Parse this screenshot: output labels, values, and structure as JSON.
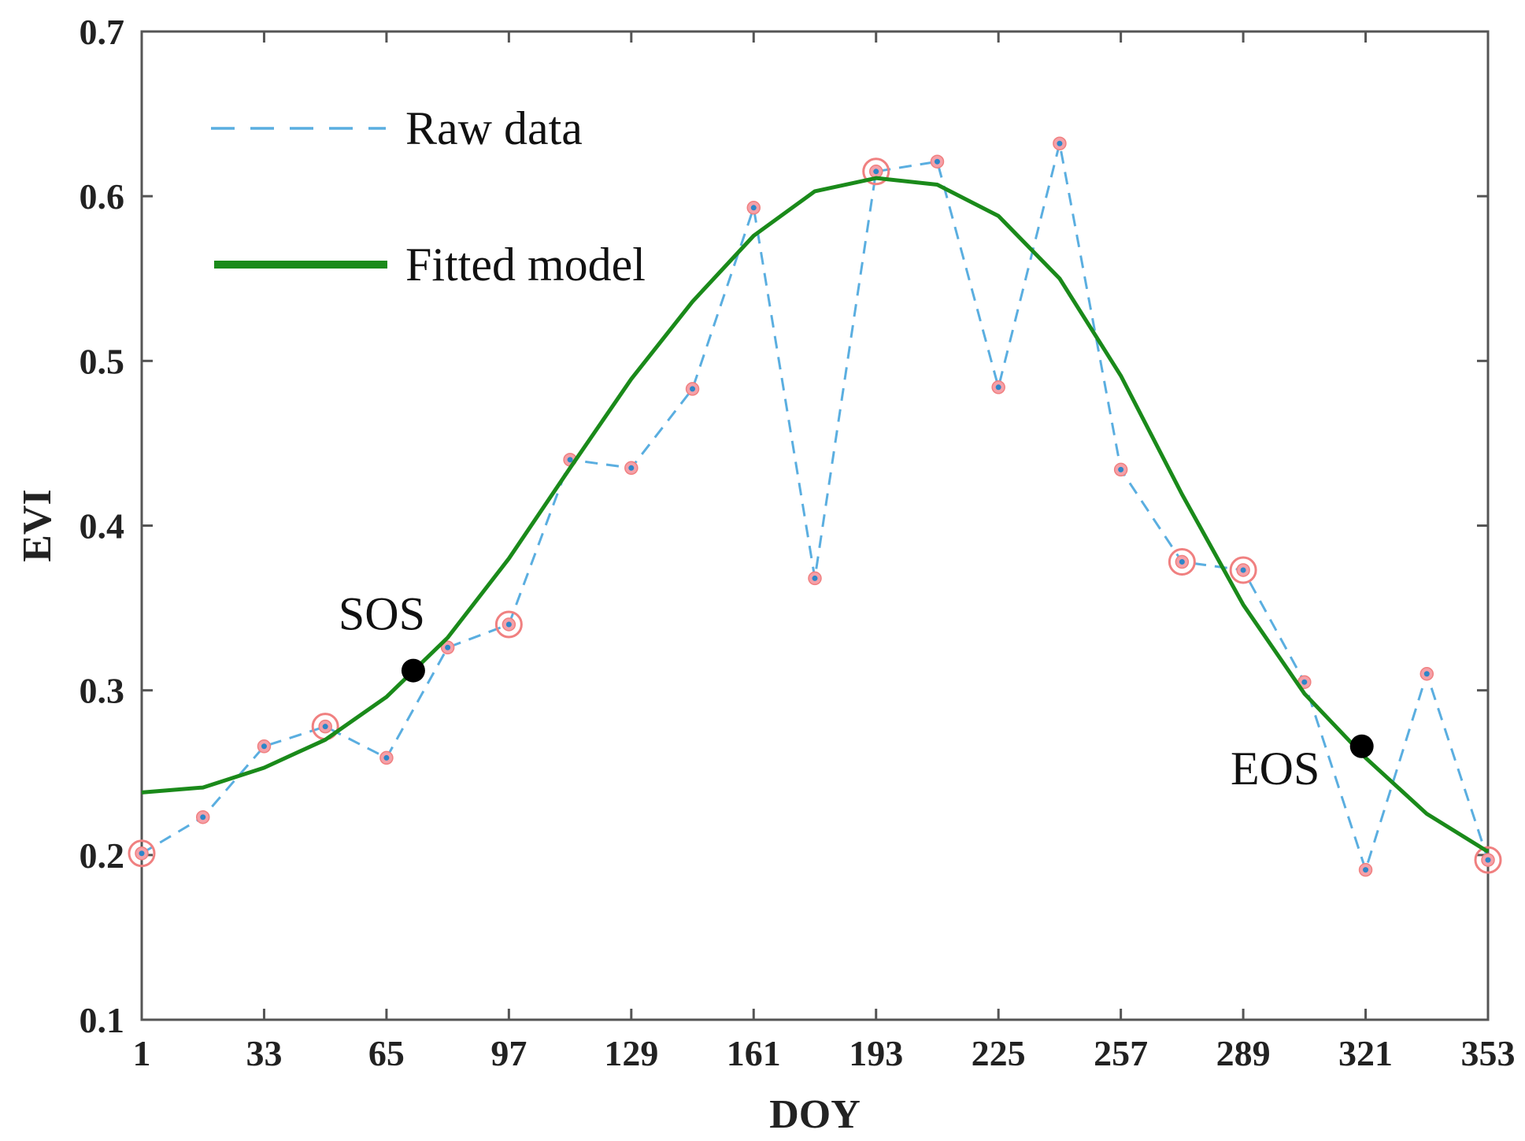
{
  "chart_data": {
    "type": "line",
    "title": "",
    "xlabel": "DOY",
    "ylabel": "EVI",
    "xlim": [
      1,
      353
    ],
    "ylim": [
      0.1,
      0.7
    ],
    "xticks": [
      1,
      33,
      65,
      97,
      129,
      161,
      193,
      225,
      257,
      289,
      321,
      353
    ],
    "yticks": [
      0.1,
      0.2,
      0.3,
      0.4,
      0.5,
      0.6,
      0.7
    ],
    "ytick_labels": [
      "0.1",
      "0.2",
      "0.3",
      "0.4",
      "0.5",
      "0.6",
      "0.7"
    ],
    "legend_position": "top-left",
    "series": [
      {
        "name": "Raw data",
        "style": "dashed",
        "color": "#5aaee0",
        "x": [
          1,
          17,
          33,
          49,
          65,
          81,
          97,
          113,
          129,
          145,
          161,
          177,
          193,
          209,
          225,
          241,
          257,
          273,
          289,
          305,
          321,
          337,
          353
        ],
        "y": [
          0.201,
          0.223,
          0.266,
          0.278,
          0.259,
          0.326,
          0.34,
          0.44,
          0.435,
          0.483,
          0.593,
          0.368,
          0.615,
          0.621,
          0.484,
          0.632,
          0.434,
          0.378,
          0.373,
          0.305,
          0.191,
          0.31,
          0.197
        ]
      },
      {
        "name": "Fitted model",
        "style": "solid",
        "color": "#1a8a1a",
        "x": [
          1,
          17,
          33,
          49,
          65,
          81,
          97,
          113,
          129,
          145,
          161,
          177,
          193,
          209,
          225,
          241,
          257,
          273,
          289,
          305,
          321,
          337,
          353
        ],
        "y": [
          0.238,
          0.241,
          0.253,
          0.27,
          0.296,
          0.332,
          0.38,
          0.435,
          0.489,
          0.536,
          0.576,
          0.603,
          0.611,
          0.607,
          0.588,
          0.55,
          0.491,
          0.419,
          0.352,
          0.298,
          0.259,
          0.225,
          0.202
        ]
      }
    ],
    "circled_points": [
      {
        "x": 1,
        "y": 0.201
      },
      {
        "x": 49,
        "y": 0.278
      },
      {
        "x": 97,
        "y": 0.34
      },
      {
        "x": 193,
        "y": 0.615
      },
      {
        "x": 273,
        "y": 0.378
      },
      {
        "x": 289,
        "y": 0.373
      },
      {
        "x": 353,
        "y": 0.197
      }
    ],
    "annotations": [
      {
        "label": "SOS",
        "x": 72,
        "y": 0.312,
        "text_side": "above-left"
      },
      {
        "label": "EOS",
        "x": 320,
        "y": 0.266,
        "text_side": "below-left"
      }
    ],
    "colors": {
      "raw_line": "#5aaee0",
      "raw_dot": "#2f86c8",
      "circle": "#f08080",
      "fitted": "#1a8a1a",
      "marker": "#000000",
      "axis": "#555555"
    }
  }
}
